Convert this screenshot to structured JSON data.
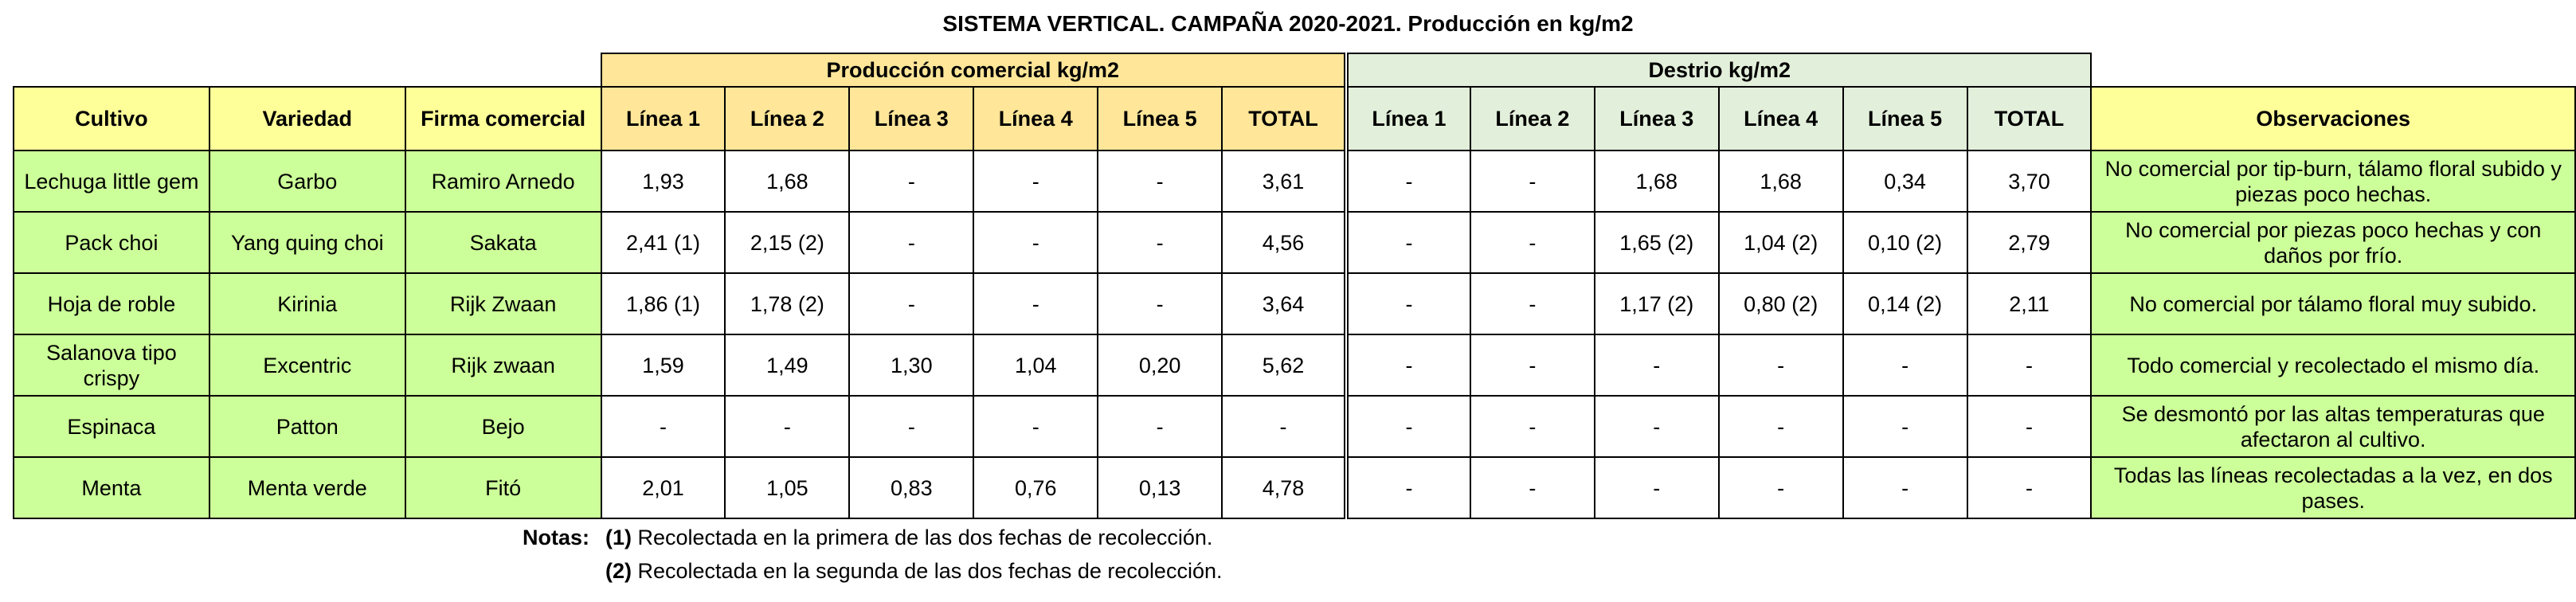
{
  "title": "SISTEMA VERTICAL. CAMPAÑA 2020-2021. Producción en kg/m2",
  "groups": {
    "produccion": "Producción comercial kg/m2",
    "destrio": "Destrio kg/m2"
  },
  "headers": {
    "cultivo": "Cultivo",
    "variedad": "Variedad",
    "firma": "Firma comercial",
    "prod": [
      "Línea 1",
      "Línea 2",
      "Línea 3",
      "Línea 4",
      "Línea 5",
      "TOTAL"
    ],
    "dest": [
      "Línea 1",
      "Línea 2",
      "Línea 3",
      "Línea 4",
      "Línea 5",
      "TOTAL"
    ],
    "observaciones": "Observaciones"
  },
  "rows": [
    {
      "cultivo": "Lechuga little gem",
      "variedad": "Garbo",
      "firma": "Ramiro Arnedo",
      "prod": [
        "1,93",
        "1,68",
        "-",
        "-",
        "-",
        "3,61"
      ],
      "dest": [
        "-",
        "-",
        "1,68",
        "1,68",
        "0,34",
        "3,70"
      ],
      "obs": "No comercial por tip-burn, tálamo floral subido y piezas poco hechas."
    },
    {
      "cultivo": "Pack choi",
      "variedad": "Yang quing choi",
      "firma": "Sakata",
      "prod": [
        "2,41 (1)",
        "2,15 (2)",
        "-",
        "-",
        "-",
        "4,56"
      ],
      "dest": [
        "-",
        "-",
        "1,65 (2)",
        "1,04 (2)",
        "0,10 (2)",
        "2,79"
      ],
      "obs": "No comercial por piezas poco hechas y con daños por frío."
    },
    {
      "cultivo": "Hoja de roble",
      "variedad": "Kirinia",
      "firma": "Rijk Zwaan",
      "prod": [
        "1,86 (1)",
        "1,78 (2)",
        "-",
        "-",
        "-",
        "3,64"
      ],
      "dest": [
        "-",
        "-",
        "1,17 (2)",
        "0,80 (2)",
        "0,14 (2)",
        "2,11"
      ],
      "obs": "No comercial por tálamo floral muy subido."
    },
    {
      "cultivo": "Salanova tipo crispy",
      "variedad": "Excentric",
      "firma": "Rijk zwaan",
      "prod": [
        "1,59",
        "1,49",
        "1,30",
        "1,04",
        "0,20",
        "5,62"
      ],
      "dest": [
        "-",
        "-",
        "-",
        "-",
        "-",
        "-"
      ],
      "obs": "Todo comercial y recolectado el mismo día."
    },
    {
      "cultivo": "Espinaca",
      "variedad": "Patton",
      "firma": "Bejo",
      "prod": [
        "-",
        "-",
        "-",
        "-",
        "-",
        "-"
      ],
      "dest": [
        "-",
        "-",
        "-",
        "-",
        "-",
        "-"
      ],
      "obs": "Se desmontó por las altas temperaturas que afectaron al cultivo."
    },
    {
      "cultivo": "Menta",
      "variedad": "Menta verde",
      "firma": "Fitó",
      "prod": [
        "2,01",
        "1,05",
        "0,83",
        "0,76",
        "0,13",
        "4,78"
      ],
      "dest": [
        "-",
        "-",
        "-",
        "-",
        "-",
        "-"
      ],
      "obs": "Todas las líneas recolectadas a la vez, en dos pases."
    }
  ],
  "notes": {
    "label": "Notas:",
    "items": [
      {
        "marker": "(1)",
        "text": " Recolectada en la primera de las dos fechas de recolección."
      },
      {
        "marker": "(2)",
        "text": " Recolectada en la segunda de las dos fechas de recolección."
      }
    ]
  }
}
